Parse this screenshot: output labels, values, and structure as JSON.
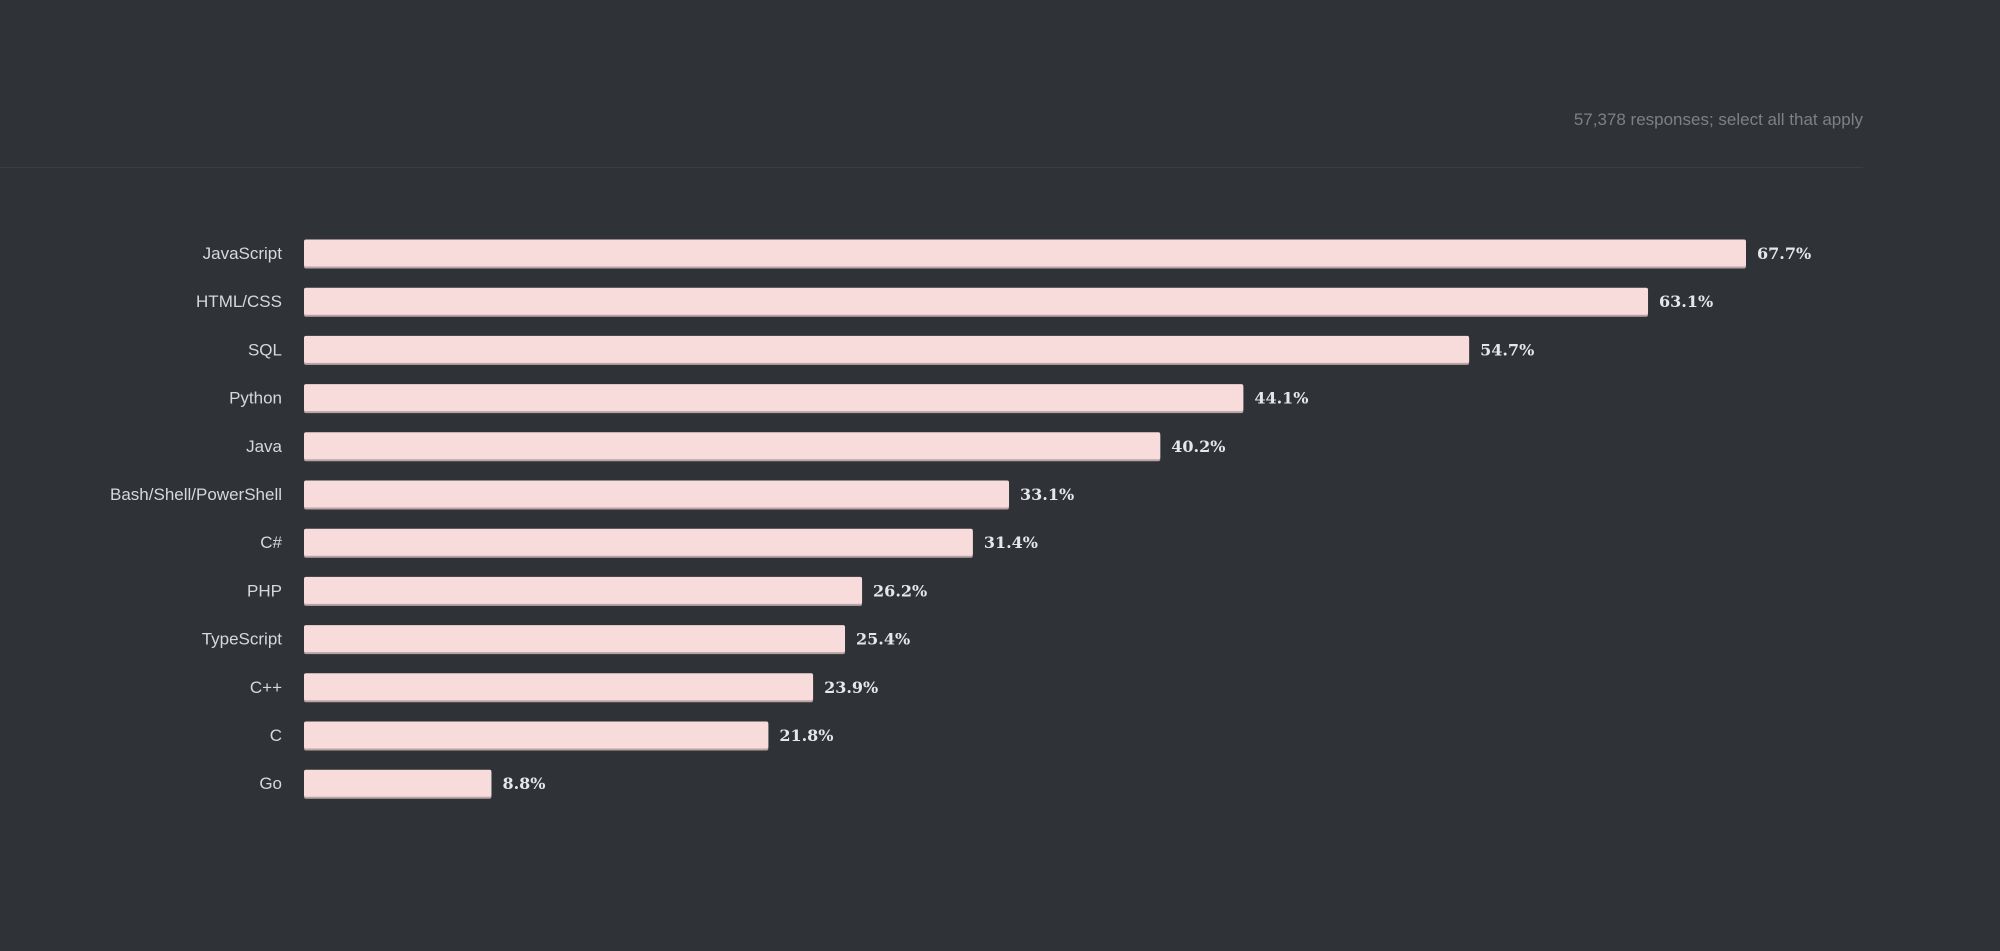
{
  "header": {
    "responses_note": "57,378 responses; select all that apply"
  },
  "colors": {
    "background": "#2f3237",
    "bar": "#f8dcdc",
    "category_text": "#d6d8da",
    "value_text": "#e6e7e8"
  },
  "chart_data": {
    "type": "bar",
    "orientation": "horizontal",
    "categories": [
      "JavaScript",
      "HTML/CSS",
      "SQL",
      "Python",
      "Java",
      "Bash/Shell/PowerShell",
      "C#",
      "PHP",
      "TypeScript",
      "C++",
      "C",
      "Go"
    ],
    "values": [
      67.7,
      63.1,
      54.7,
      44.1,
      40.2,
      33.1,
      31.4,
      26.2,
      25.4,
      23.9,
      21.8,
      8.8
    ],
    "value_labels": [
      "67.7%",
      "63.1%",
      "54.7%",
      "44.1%",
      "40.2%",
      "33.1%",
      "31.4%",
      "26.2%",
      "25.4%",
      "23.9%",
      "21.8%",
      "8.8%"
    ],
    "unit": "%",
    "xlim": [
      0,
      100
    ],
    "grid": false,
    "legend": "none"
  }
}
